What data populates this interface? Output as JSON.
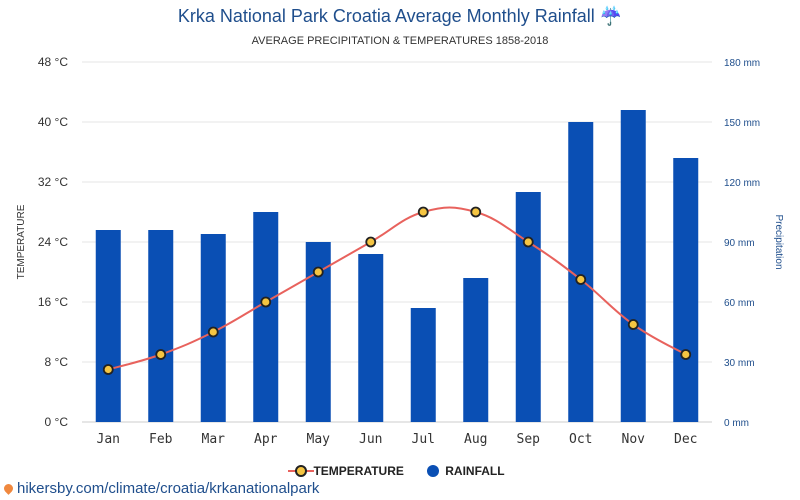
{
  "title": "Krka National Park Croatia Average Monthly Rainfall ☔",
  "subtitle": "AVERAGE PRECIPITATION & TEMPERATURES 1858-2018",
  "footer": "hikersby.com/climate/croatia/krkanationalpark",
  "colors": {
    "temperature": "#e8625d",
    "marker": "#f5c542",
    "rainfall": "#0a4fb4",
    "right_axis": "#1f4e8c"
  },
  "chart_data": {
    "type": "bar+line",
    "categories": [
      "Jan",
      "Feb",
      "Mar",
      "Apr",
      "May",
      "Jun",
      "Jul",
      "Aug",
      "Sep",
      "Oct",
      "Nov",
      "Dec"
    ],
    "series": [
      {
        "name": "TEMPERATURE",
        "type": "line",
        "axis": "left",
        "values": [
          7,
          9,
          12,
          16,
          20,
          24,
          28,
          28,
          24,
          19,
          13,
          9
        ]
      },
      {
        "name": "RAINFALL",
        "type": "bar",
        "axis": "right",
        "values": [
          96,
          96,
          94,
          105,
          90,
          84,
          57,
          72,
          115,
          150,
          156,
          132
        ]
      }
    ],
    "ylabel_left": "TEMPERATURE",
    "ylabel_right": "Precipitation",
    "ylim_left": [
      0,
      48
    ],
    "ylim_right": [
      0,
      180
    ],
    "yticks_left": [
      "0 °C",
      "8 °C",
      "16 °C",
      "24 °C",
      "32 °C",
      "40 °C",
      "48 °C"
    ],
    "yticks_right": [
      "0 mm",
      "30 mm",
      "60 mm",
      "90 mm",
      "120 mm",
      "150 mm",
      "180 mm"
    ],
    "grid": true,
    "legend_position": "bottom-center"
  }
}
